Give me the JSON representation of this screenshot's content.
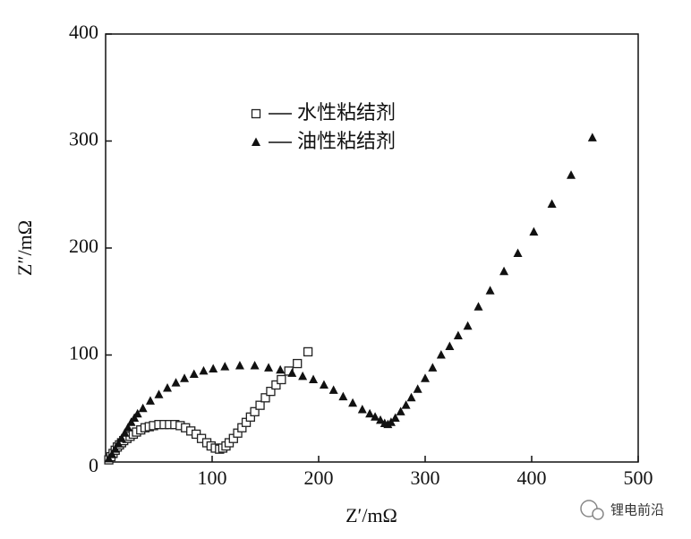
{
  "chart_data": {
    "type": "scatter",
    "xlabel": "Z′/mΩ",
    "ylabel": "Z″/mΩ",
    "xlim": [
      0,
      500
    ],
    "ylim": [
      0,
      400
    ],
    "xticks": [
      100,
      200,
      300,
      400,
      500
    ],
    "yticks": [
      0,
      100,
      200,
      300,
      400
    ],
    "watermark": "锂电前沿",
    "series": [
      {
        "name": "水性粘结剂",
        "marker": "square",
        "color": "#222",
        "x": [
          3,
          5,
          7,
          9,
          11,
          13,
          15,
          17,
          20,
          23,
          26,
          29,
          33,
          37,
          41,
          45,
          50,
          55,
          60,
          65,
          70,
          75,
          80,
          85,
          90,
          95,
          99,
          103,
          107,
          110,
          113,
          116,
          120,
          124,
          128,
          132,
          136,
          140,
          145,
          150,
          155,
          160,
          165,
          172,
          180,
          190
        ],
        "values": [
          2,
          5,
          8,
          11,
          14,
          16,
          18,
          20,
          22,
          24,
          26,
          28,
          30,
          32,
          33,
          34,
          35,
          35,
          35,
          35,
          34,
          32,
          29,
          26,
          22,
          18,
          15,
          13,
          12,
          13,
          15,
          18,
          22,
          27,
          32,
          37,
          42,
          47,
          53,
          60,
          66,
          72,
          77,
          85,
          92,
          103
        ]
      },
      {
        "name": "油性粘结剂",
        "marker": "triangle",
        "color": "#111",
        "x": [
          3,
          6,
          9,
          12,
          15,
          18,
          21,
          24,
          27,
          30,
          35,
          42,
          50,
          58,
          66,
          74,
          83,
          92,
          101,
          112,
          126,
          140,
          153,
          164,
          175,
          185,
          195,
          205,
          214,
          223,
          232,
          241,
          248,
          253,
          258,
          262,
          265,
          268,
          272,
          277,
          282,
          287,
          293,
          300,
          307,
          315,
          323,
          331,
          340,
          350,
          361,
          374,
          387,
          402,
          419,
          437,
          457
        ],
        "values": [
          3,
          7,
          12,
          17,
          22,
          27,
          32,
          37,
          41,
          45,
          50,
          57,
          63,
          69,
          74,
          78,
          82,
          85,
          87,
          89,
          90,
          90,
          88,
          86,
          83,
          80,
          77,
          72,
          67,
          61,
          55,
          49,
          45,
          42,
          39,
          36,
          35,
          37,
          41,
          47,
          53,
          60,
          68,
          78,
          88,
          100,
          108,
          118,
          127,
          145,
          160,
          178,
          195,
          215,
          241,
          268,
          303
        ]
      }
    ]
  }
}
